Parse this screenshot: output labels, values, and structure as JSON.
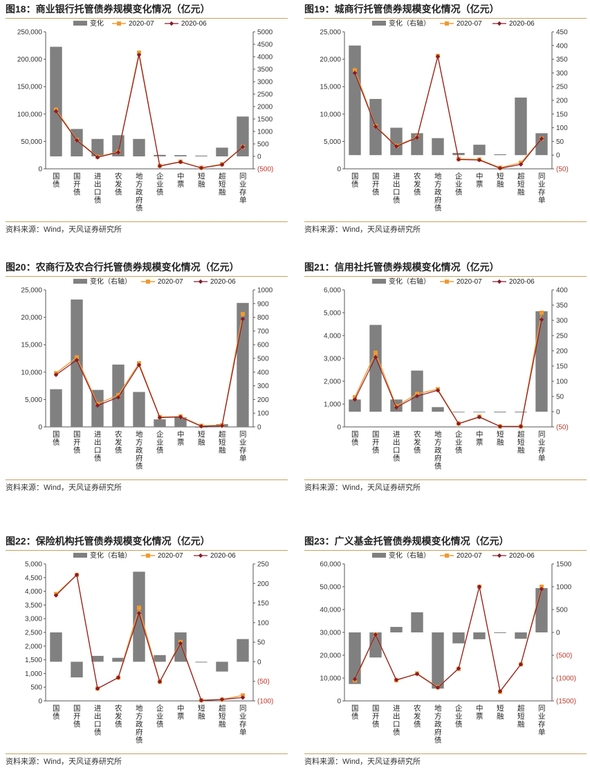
{
  "source_text": "资料来源：Wind，天风证券研究所",
  "colors": {
    "bar": "#808080",
    "line07": "#f09a30",
    "line06": "#8b1a2a",
    "neg": "#c0392b",
    "rule": "#c8a060"
  },
  "legend": {
    "change": "变化",
    "change_right": "变化（右轴）",
    "s07": "2020-07",
    "s06": "2020-06"
  },
  "chart_data": [
    {
      "type": "bar+line",
      "title": "图18：商业银行托管债券规模变化情况（亿元）",
      "legend_change": "change",
      "categories": [
        "国债",
        "国开债",
        "进出口债",
        "农发债",
        "地方政府债",
        "企业债",
        "中票",
        "短融",
        "超短融",
        "同业存单"
      ],
      "left_axis": {
        "min": 0,
        "max": 250000,
        "ticks": [
          "0",
          "50,000",
          "100,000",
          "150,000",
          "200,000",
          "250,000"
        ]
      },
      "right_axis": {
        "min": -500,
        "max": 5000,
        "ticks": [
          "(500)",
          "0",
          "500",
          "1000",
          "1500",
          "2000",
          "2500",
          "3000",
          "3500",
          "4000",
          "4500",
          "5000"
        ]
      },
      "bar_values": [
        4400,
        1100,
        700,
        850,
        700,
        60,
        50,
        30,
        350,
        1600
      ],
      "series": [
        {
          "name": "2020-07",
          "values": [
            108000,
            53000,
            22000,
            31000,
            212000,
            5500,
            13000,
            2000,
            8500,
            40000
          ]
        },
        {
          "name": "2020-06",
          "values": [
            105000,
            52000,
            21000,
            30000,
            208000,
            5000,
            12500,
            1500,
            7500,
            40000
          ]
        }
      ]
    },
    {
      "type": "bar+line",
      "title": "图19：城商行托管债券规模变化情况（亿元）",
      "legend_change": "change_right",
      "categories": [
        "国债",
        "国开债",
        "进出口债",
        "农发债",
        "地方政府债",
        "企业债",
        "中票",
        "短融",
        "超短融",
        "同业存单"
      ],
      "left_axis": {
        "min": 0,
        "max": 25000,
        "ticks": [
          "0",
          "5,000",
          "10,000",
          "15,000",
          "20,000",
          "25,000"
        ]
      },
      "right_axis": {
        "min": -50,
        "max": 450,
        "ticks": [
          "(50)",
          "0",
          "50",
          "100",
          "150",
          "200",
          "250",
          "300",
          "350",
          "400",
          "450"
        ]
      },
      "bar_values": [
        400,
        205,
        100,
        80,
        62,
        8,
        38,
        3,
        210,
        80
      ],
      "series": [
        {
          "name": "2020-07",
          "values": [
            18000,
            7800,
            4200,
            5800,
            20600,
            1800,
            1700,
            200,
            1100,
            5500
          ]
        },
        {
          "name": "2020-06",
          "values": [
            17500,
            7700,
            4100,
            5700,
            20500,
            1700,
            1600,
            100,
            800,
            5500
          ]
        }
      ]
    },
    {
      "type": "bar+line",
      "title": "图20：农商行及农合行托管债券规模变化情况（亿元）",
      "legend_change": "change_right",
      "categories": [
        "国债",
        "国开债",
        "进出口债",
        "农发债",
        "地方政府债",
        "企业债",
        "中票",
        "短融",
        "超短融",
        "同业存单"
      ],
      "left_axis": {
        "min": 0,
        "max": 25000,
        "ticks": [
          "0",
          "5,000",
          "10,000",
          "15,000",
          "20,000",
          "25,000"
        ]
      },
      "right_axis": {
        "min": 0,
        "max": 1000,
        "ticks": [
          "0",
          "100",
          "200",
          "300",
          "400",
          "500",
          "600",
          "700",
          "800",
          "900",
          "1000"
        ]
      },
      "bar_values": [
        275,
        930,
        270,
        455,
        255,
        55,
        70,
        0,
        20,
        905
      ],
      "series": [
        {
          "name": "2020-07",
          "values": [
            9800,
            12700,
            4200,
            5800,
            11600,
            1800,
            1900,
            200,
            300,
            20600
          ]
        },
        {
          "name": "2020-06",
          "values": [
            9500,
            12200,
            3900,
            5400,
            11300,
            1700,
            1800,
            100,
            200,
            19700
          ]
        }
      ]
    },
    {
      "type": "bar+line",
      "title": "图21：信用社托管债券规模变化情况（亿元）",
      "legend_change": "change_right",
      "categories": [
        "国债",
        "国开债",
        "进出口债",
        "农发债",
        "地方政府债",
        "企业债",
        "中票",
        "短融",
        "超短融",
        "同业存单"
      ],
      "left_axis": {
        "min": 0,
        "max": 6000,
        "ticks": [
          "0",
          "1,000",
          "2,000",
          "3,000",
          "4,000",
          "5,000",
          "6,000"
        ]
      },
      "right_axis": {
        "min": -50,
        "max": 400,
        "ticks": [
          "(50)",
          "0",
          "50",
          "100",
          "150",
          "200",
          "250",
          "300",
          "350",
          "400"
        ]
      },
      "bar_values": [
        40,
        285,
        40,
        135,
        15,
        -2,
        -2,
        0,
        0,
        330
      ],
      "series": [
        {
          "name": "2020-07",
          "values": [
            1300,
            3250,
            900,
            1450,
            1650,
            150,
            450,
            20,
            20,
            5000
          ]
        },
        {
          "name": "2020-06",
          "values": [
            1200,
            3050,
            850,
            1350,
            1600,
            140,
            430,
            20,
            20,
            4700
          ]
        }
      ]
    },
    {
      "type": "bar+line",
      "title": "图22：保险机构托管债券规模变化情况（亿元）",
      "legend_change": "change_right",
      "categories": [
        "国债",
        "国开债",
        "进出口债",
        "农发债",
        "地方政府债",
        "企业债",
        "中票",
        "短融",
        "超短融",
        "同业存单"
      ],
      "left_axis": {
        "min": 0,
        "max": 5000,
        "ticks": [
          "0",
          "500",
          "1,000",
          "1,500",
          "2,000",
          "2,500",
          "3,000",
          "3,500",
          "4,000",
          "4,500",
          "5,000"
        ]
      },
      "right_axis": {
        "min": -100,
        "max": 250,
        "ticks": [
          "(100)",
          "(50)",
          "0",
          "50",
          "100",
          "150",
          "200",
          "250"
        ]
      },
      "bar_values": [
        75,
        -40,
        15,
        10,
        230,
        17,
        75,
        0,
        -25,
        58
      ],
      "series": [
        {
          "name": "2020-07",
          "values": [
            3900,
            4600,
            450,
            850,
            3400,
            700,
            2150,
            20,
            50,
            200
          ]
        },
        {
          "name": "2020-06",
          "values": [
            3850,
            4600,
            450,
            850,
            3200,
            700,
            2100,
            20,
            50,
            120
          ]
        }
      ]
    },
    {
      "type": "bar+line",
      "title": "图23：广义基金托管债券规模变化情况（亿元）",
      "legend_change": "change_right",
      "categories": [
        "国债",
        "国开债",
        "进出口债",
        "农发债",
        "地方政府债",
        "企业债",
        "中票",
        "短融",
        "超短融",
        "同业存单"
      ],
      "left_axis": {
        "min": 0,
        "max": 60000,
        "ticks": [
          "0",
          "10,000",
          "20,000",
          "30,000",
          "40,000",
          "50,000",
          "60,000"
        ]
      },
      "right_axis": {
        "min": -1500,
        "max": 1500,
        "ticks": [
          "(1500)",
          "(1000)",
          "(500)",
          "0",
          "500",
          "1000",
          "1500"
        ]
      },
      "bar_values": [
        -1130,
        -550,
        120,
        440,
        -1230,
        -240,
        -150,
        0,
        -140,
        970
      ],
      "series": [
        {
          "name": "2020-07",
          "values": [
            9000,
            29000,
            9000,
            12000,
            6000,
            14000,
            50000,
            4000,
            16000,
            50000
          ]
        },
        {
          "name": "2020-06",
          "values": [
            9500,
            29000,
            9200,
            11800,
            5800,
            14200,
            50000,
            4200,
            16000,
            49000
          ]
        }
      ]
    }
  ]
}
